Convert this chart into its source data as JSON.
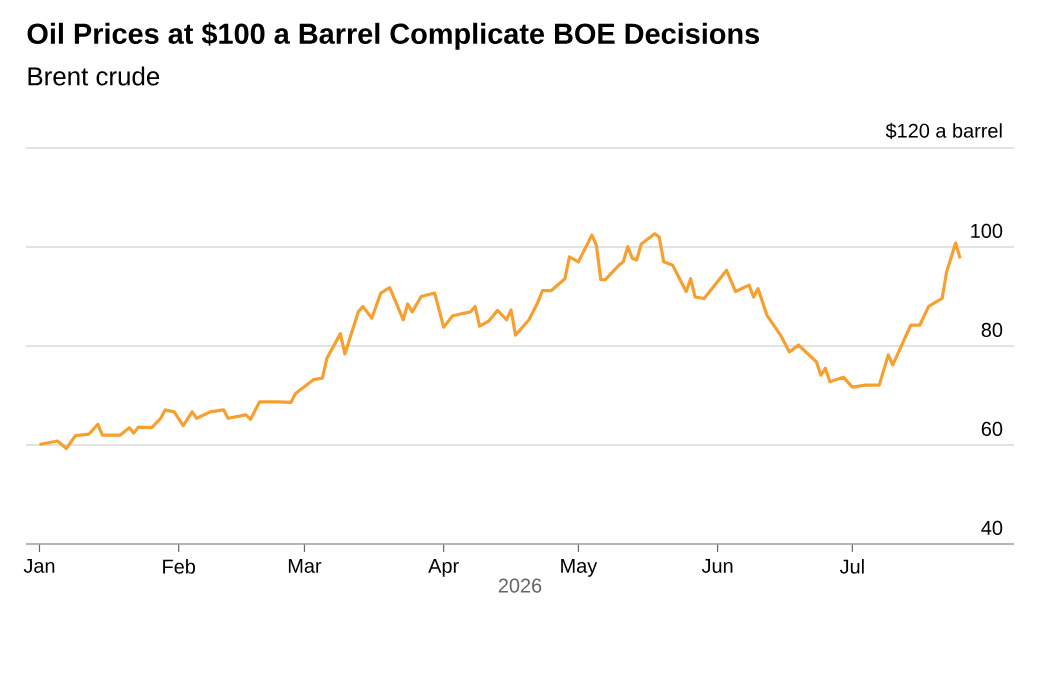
{
  "chart_data": {
    "type": "line",
    "title": "Oil Prices at $100 a Barrel Complicate BOE Decisions",
    "subtitle": "Brent crude",
    "xlabel": "2026",
    "x": [
      "2026-01-01",
      "2026-01-05",
      "2026-01-07",
      "2026-01-09",
      "2026-01-12",
      "2026-01-14",
      "2026-01-15",
      "2026-01-19",
      "2026-01-21",
      "2026-01-22",
      "2026-01-23",
      "2026-01-26",
      "2026-01-28",
      "2026-01-29",
      "2026-01-31",
      "2026-02-02",
      "2026-02-04",
      "2026-02-05",
      "2026-02-08",
      "2026-02-11",
      "2026-02-12",
      "2026-02-16",
      "2026-02-17",
      "2026-02-19",
      "2026-02-23",
      "2026-02-26",
      "2026-02-27",
      "2026-03-03",
      "2026-03-05",
      "2026-03-06",
      "2026-03-09",
      "2026-03-10",
      "2026-03-13",
      "2026-03-14",
      "2026-03-16",
      "2026-03-18",
      "2026-03-20",
      "2026-03-23",
      "2026-03-24",
      "2026-03-25",
      "2026-03-27",
      "2026-03-30",
      "2026-04-01",
      "2026-04-03",
      "2026-04-07",
      "2026-04-08",
      "2026-04-09",
      "2026-04-11",
      "2026-04-13",
      "2026-04-15",
      "2026-04-16",
      "2026-04-17",
      "2026-04-20",
      "2026-04-22",
      "2026-04-23",
      "2026-04-25",
      "2026-04-28",
      "2026-04-29",
      "2026-05-01",
      "2026-05-04",
      "2026-05-05",
      "2026-05-06",
      "2026-05-07",
      "2026-05-10",
      "2026-05-11",
      "2026-05-12",
      "2026-05-13",
      "2026-05-14",
      "2026-05-15",
      "2026-05-18",
      "2026-05-19",
      "2026-05-20",
      "2026-05-22",
      "2026-05-25",
      "2026-05-26",
      "2026-05-27",
      "2026-05-29",
      "2026-06-03",
      "2026-06-05",
      "2026-06-08",
      "2026-06-09",
      "2026-06-10",
      "2026-06-12",
      "2026-06-15",
      "2026-06-17",
      "2026-06-19",
      "2026-06-23",
      "2026-06-24",
      "2026-06-25",
      "2026-06-26",
      "2026-06-29",
      "2026-07-01",
      "2026-07-04",
      "2026-07-07",
      "2026-07-09",
      "2026-07-10",
      "2026-07-14",
      "2026-07-16",
      "2026-07-18",
      "2026-07-21",
      "2026-07-22",
      "2026-07-24",
      "2026-07-25"
    ],
    "series": [
      {
        "color": "#f7a030",
        "values": [
          60.1,
          60.8,
          59.3,
          61.9,
          62.2,
          64.2,
          62.0,
          62.0,
          63.5,
          62.4,
          63.6,
          63.5,
          65.4,
          67.1,
          66.7,
          63.9,
          66.7,
          65.4,
          66.7,
          67.1,
          65.4,
          66.1,
          65.2,
          68.7,
          68.7,
          68.6,
          70.4,
          73.2,
          73.5,
          77.5,
          82.5,
          78.4,
          86.9,
          88.0,
          85.6,
          90.7,
          91.8,
          85.3,
          88.5,
          86.9,
          90.0,
          90.7,
          83.8,
          86.1,
          86.9,
          88.0,
          84.0,
          85.0,
          87.2,
          85.3,
          87.3,
          82.2,
          85.3,
          88.9,
          91.2,
          91.2,
          93.6,
          98.0,
          97.0,
          102.4,
          100.4,
          93.4,
          93.4,
          96.3,
          97.0,
          100.1,
          97.7,
          97.4,
          100.6,
          102.7,
          102.0,
          97.0,
          96.3,
          91.0,
          93.6,
          89.9,
          89.6,
          95.3,
          91.0,
          92.3,
          89.9,
          91.6,
          86.2,
          82.2,
          78.8,
          80.2,
          76.8,
          74.1,
          75.5,
          72.8,
          73.7,
          71.7,
          72.1,
          72.1,
          78.2,
          76.2,
          84.2,
          84.2,
          88.0,
          89.6,
          95.0,
          100.8,
          97.7
        ]
      }
    ],
    "xlim": [
      "2025-12-29",
      "2026-08-06"
    ],
    "xticks": [
      {
        "value": "2026-01-01",
        "label": "Jan"
      },
      {
        "value": "2026-02-01",
        "label": "Feb"
      },
      {
        "value": "2026-03-01",
        "label": "Mar"
      },
      {
        "value": "2026-04-01",
        "label": "Apr"
      },
      {
        "value": "2026-05-01",
        "label": "May"
      },
      {
        "value": "2026-06-01",
        "label": "Jun"
      },
      {
        "value": "2026-07-01",
        "label": "Jul"
      }
    ],
    "ylim": [
      40,
      120
    ],
    "yticks": [
      40,
      60,
      80,
      100,
      {
        "value": 120,
        "label": "$120 a barrel"
      }
    ],
    "grid": "y"
  }
}
